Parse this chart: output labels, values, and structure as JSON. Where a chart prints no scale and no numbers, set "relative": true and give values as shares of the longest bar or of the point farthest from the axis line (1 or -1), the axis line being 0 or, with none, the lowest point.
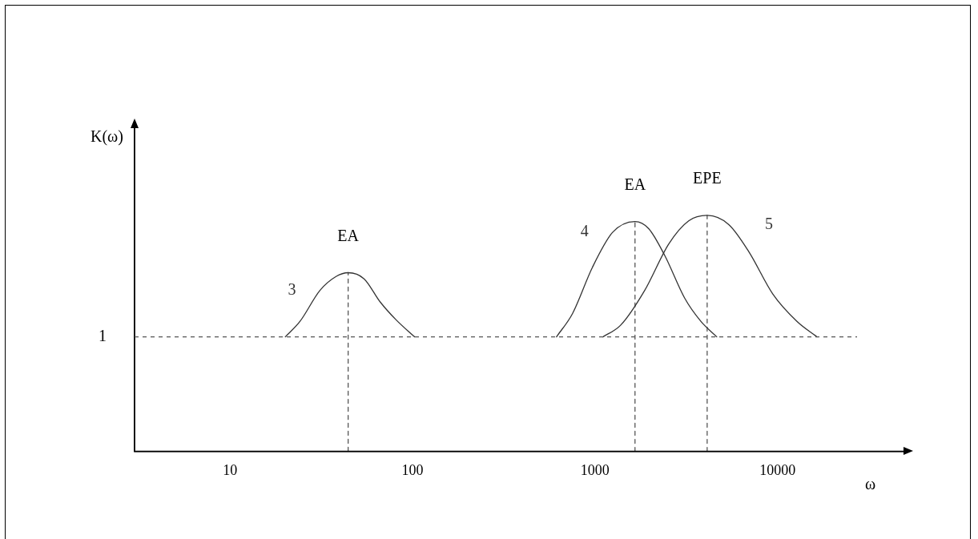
{
  "chart_data": {
    "type": "line",
    "relative": true,
    "log": "x",
    "xlabel": "ω",
    "ylabel": "K(ω)",
    "xlim": [
      3,
      50000
    ],
    "xticks": [
      10,
      100,
      1000,
      10000
    ],
    "grid": false,
    "legend": false,
    "marker": "none",
    "ref_lines": [
      {
        "axis": "y",
        "value": 0.485,
        "color": "#555555",
        "line_style": "dashed"
      }
    ],
    "annotations": [
      "1",
      {
        "text": "EA",
        "x": 44.4,
        "y": 0.757
      },
      {
        "text": "EA",
        "x": 1656,
        "y": 0.974
      },
      {
        "text": "EPE",
        "x": 4115,
        "y": 1
      }
    ],
    "series": [
      {
        "name": "3",
        "color": "#333333",
        "line_style": "solid",
        "x": [
          20.1,
          24.2,
          31.1,
          38.1,
          44.4,
          54.3,
          66.5,
          81.3,
          102.6
        ],
        "values": [
          0.485,
          0.551,
          0.682,
          0.741,
          0.757,
          0.731,
          0.633,
          0.557,
          0.485
        ]
      },
      {
        "name": "4",
        "color": "#333333",
        "line_style": "solid",
        "x": [
          615,
          753,
          968,
          1248,
          1656,
          1968,
          2410,
          3099,
          3798,
          4645
        ],
        "values": [
          0.485,
          0.584,
          0.78,
          0.928,
          0.974,
          0.944,
          0.83,
          0.649,
          0.551,
          0.485
        ]
      },
      {
        "name": "5",
        "color": "#333333",
        "line_style": "solid",
        "x": [
          1105,
          1380,
          1871,
          2535,
          3260,
          4115,
          5408,
          6964,
          9436,
          12770,
          16440
        ],
        "values": [
          0.485,
          0.534,
          0.682,
          0.879,
          0.977,
          1,
          0.961,
          0.846,
          0.666,
          0.551,
          0.485
        ]
      },
      {
        "color": "#555555",
        "line_style": "dashed",
        "x": [
          44.4,
          44.4
        ],
        "values": [
          0,
          0.757
        ]
      },
      {
        "color": "#555555",
        "line_style": "dashed",
        "x": [
          1656,
          1656
        ],
        "values": [
          0,
          0.974
        ]
      },
      {
        "color": "#555555",
        "line_style": "dashed",
        "x": [
          4115,
          4115
        ],
        "values": [
          0,
          1
        ]
      }
    ]
  }
}
